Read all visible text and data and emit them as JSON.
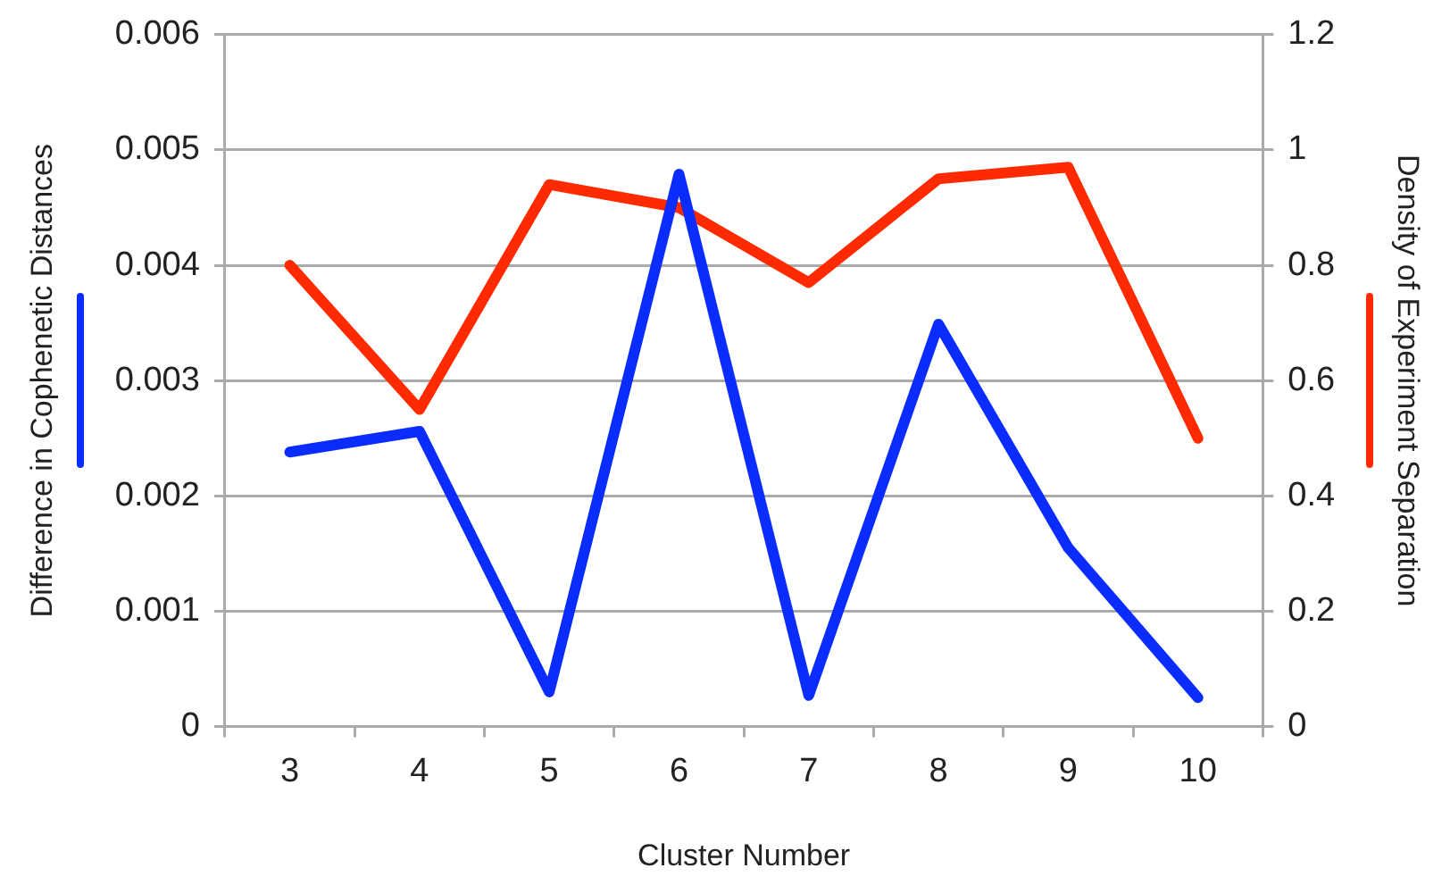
{
  "chart_data": {
    "type": "line",
    "xlabel": "Cluster Number",
    "ylabel": "Difference in Cophenetic Distances",
    "y2label": "Density of Experiment Separation",
    "categories": [
      "3",
      "4",
      "5",
      "6",
      "7",
      "8",
      "9",
      "10"
    ],
    "series": [
      {
        "color": "#0a2cff",
        "values": [
          0.00238,
          0.00256,
          0.0003,
          0.00479,
          0.00027,
          0.00349,
          0.00155,
          0.00025
        ]
      },
      {
        "color": "#ff2a00",
        "axis": "y2",
        "values": [
          0.8,
          0.55,
          0.94,
          0.9,
          0.77,
          0.95,
          0.97,
          0.5
        ]
      }
    ],
    "ylim": [
      0,
      0.006
    ],
    "yticks": [
      0,
      0.001,
      0.002,
      0.003,
      0.004,
      0.005,
      0.006
    ],
    "y2lim": [
      0,
      1.2
    ],
    "y2ticks": [
      0,
      0.2,
      0.4,
      0.6,
      0.8,
      1,
      1.2
    ],
    "grid": "y",
    "legend": false,
    "marker": "none",
    "line_style": "solid"
  }
}
